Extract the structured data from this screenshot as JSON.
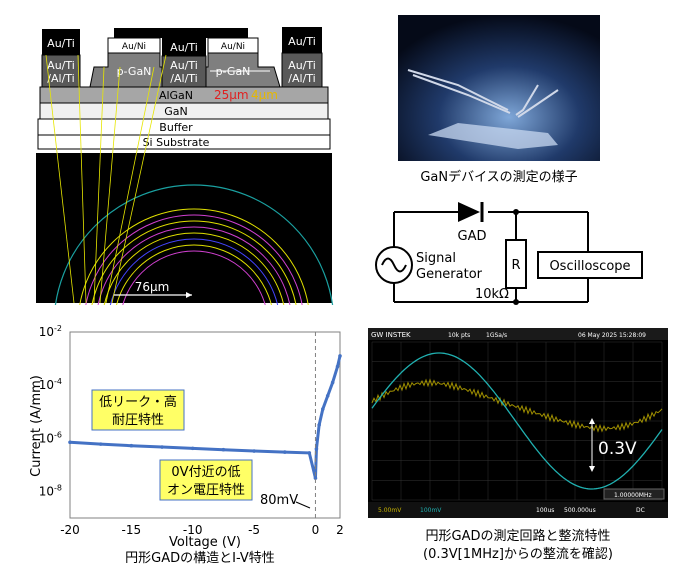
{
  "device": {
    "contact_left_top": "Au/Ti",
    "contact_left_stack_1": "Au/Ti",
    "contact_left_stack_2": "/Al/Ti",
    "gate_cap_1": "Au/Ni",
    "gate_cap_2": "Au/Ni",
    "pgan_1": "p-GaN",
    "pgan_2": "p-GaN",
    "center_contact_1": "Au/Ti",
    "center_contact_2": "/Al/Ti",
    "contact_right_top": "Au/Ti",
    "contact_right_stack_1": "Au/Ti",
    "contact_right_stack_2": "/Al/Ti",
    "layer_algan": "AlGaN",
    "layer_gan": "GaN",
    "layer_buffer": "Buffer",
    "layer_substrate": "Si Substrate",
    "dim_25": "25μm",
    "dim_4": "4μm",
    "radius_label": "76μm",
    "colors": {
      "dim_25": "#e02020",
      "dim_4": "#e6b800"
    }
  },
  "photo": {
    "caption": "GaNデバイスの測定の様子"
  },
  "circuit": {
    "diode_label": "GAD",
    "resistor_symbol": "R",
    "resistor_value": "10kΩ",
    "source_line1": "Signal",
    "source_line2": "Generator",
    "scope_label": "Oscilloscope"
  },
  "iv_chart": {
    "caption": "円形GADの構造とI-V特性",
    "annotation_low_leak_1": "低リーク・高",
    "annotation_low_leak_2": "耐圧特性",
    "annotation_low_on_1": "0V付近の低",
    "annotation_low_on_2": "オン電圧特性",
    "annotation_80mv": "80mV",
    "box_color": "#ffff66"
  },
  "chart_data": {
    "type": "line",
    "xlabel": "Voltage (V)",
    "ylabel": "Current (A/mm)",
    "x_ticks": [
      "-20",
      "-15",
      "-10",
      "-5",
      "0",
      "2"
    ],
    "y_ticks": [
      "10^-2",
      "10^-4",
      "10^-6",
      "10^-8"
    ],
    "xlim": [
      -20,
      2
    ],
    "ylim_log10": [
      -9,
      -2
    ],
    "y_scale": "log",
    "series": [
      {
        "x": [
          -20,
          -17.5,
          -15,
          -12.5,
          -10,
          -7.5,
          -5,
          -2.5,
          -0.5,
          0,
          0.08,
          0.3,
          0.6,
          1.0,
          1.4,
          1.8,
          2.0
        ],
        "y_log10": [
          -6.15,
          -6.22,
          -6.28,
          -6.33,
          -6.38,
          -6.43,
          -6.48,
          -6.52,
          -6.55,
          -7.5,
          -6.4,
          -5.5,
          -4.9,
          -4.4,
          -3.9,
          -3.3,
          -2.9
        ]
      }
    ],
    "series_color": "#4472c4"
  },
  "scope": {
    "brand": "GW INSTEK",
    "header_pts": "10k pts",
    "header_rate": "1GSa/s",
    "header_date": "06 May 2025 15:28:09",
    "voltage_label": "0.3V",
    "ch1": "5.00mV",
    "ch2": "100mV",
    "timebase": "100us",
    "offset": "500.000us",
    "freq": "1.00000MHz",
    "dc_label": "DC",
    "caption_line1": "円形GADの測定回路と整流特性",
    "caption_line2": "(0.3V[1MHz]からの整流を確認)"
  }
}
